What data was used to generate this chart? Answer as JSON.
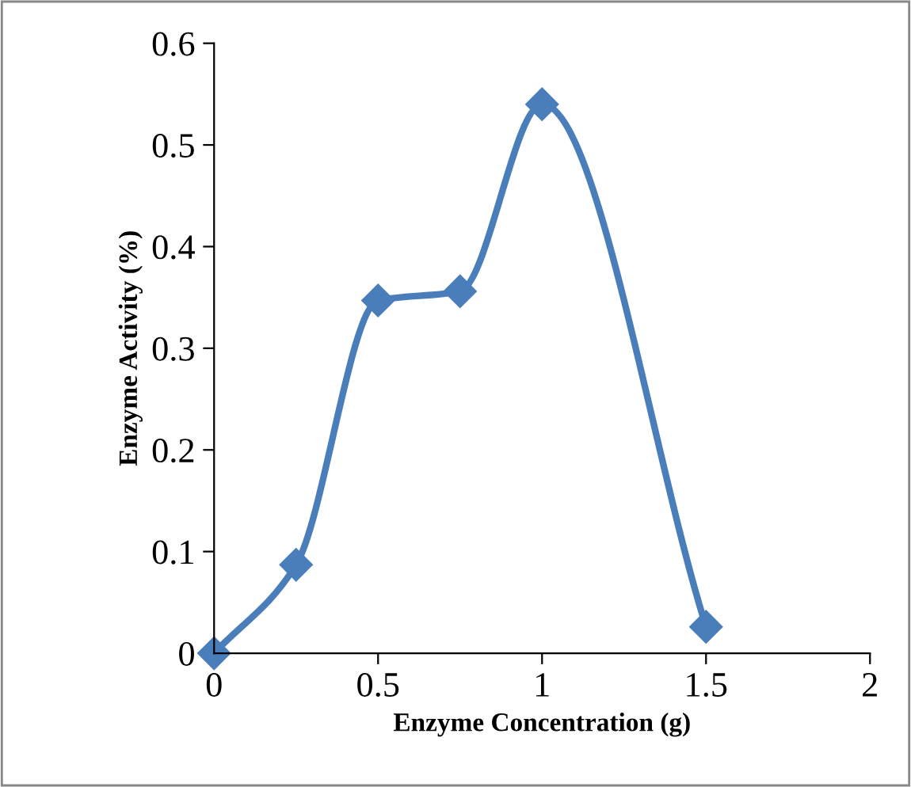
{
  "chart_data": {
    "type": "line",
    "xlabel": "Enzyme Concentration (g)",
    "ylabel": "Enzyme Activity (%)",
    "x": [
      0,
      0.25,
      0.5,
      0.75,
      1,
      1.5
    ],
    "series": [
      {
        "color": "#4a7ebb",
        "values": [
          0,
          0.087,
          0.347,
          0.356,
          0.54,
          0.026
        ]
      }
    ],
    "xlim": [
      0,
      2
    ],
    "xticks": [
      0,
      0.5,
      1,
      1.5,
      2
    ],
    "ylim": [
      0,
      0.6
    ],
    "yticks": [
      0,
      0.1,
      0.2,
      0.3,
      0.4,
      0.5,
      0.6
    ],
    "marker": "diamond",
    "line_style": "solid",
    "grid": false,
    "legend": false
  }
}
